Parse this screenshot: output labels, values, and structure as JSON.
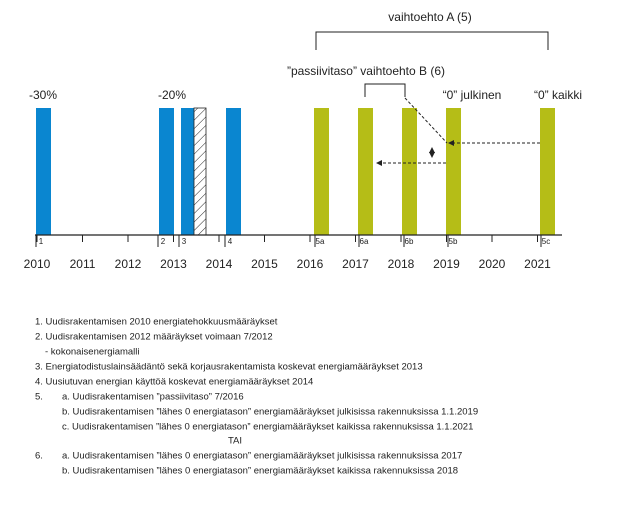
{
  "annotations": {
    "minus30": "-30%",
    "minus20": "-20%",
    "option_a": "vaihtoehto A (5)",
    "option_b": "”passiivitaso” vaihtoehto B (6)",
    "zero_public": "“0” julkinen",
    "zero_all": "“0” kaikki"
  },
  "years": [
    "2010",
    "2011",
    "2012",
    "2013",
    "2014",
    "2015",
    "2016",
    "2017",
    "2018",
    "2019",
    "2020",
    "2021"
  ],
  "bar_labels": [
    "1",
    "2",
    "3",
    "4",
    "5a",
    "6a",
    "6b",
    "5b",
    "5c"
  ],
  "notes": [
    "1. Uudisrakentamisen 2010 energiatehokkuusmääräykset",
    "2. Uudisrakentamisen 2012 määräykset voimaan 7/2012",
    "- kokonaisenergiamalli",
    "3. Energiatodistuslainsäädäntö sekä korjausrakentamista koskevat energiamääräykset 2013",
    "4. Uusiutuvan energian käyttöä koskevat energiamääräykset 2014"
  ],
  "option_a": {
    "number": "5.",
    "items": [
      "a. Uudisrakentamisen ”passiivitaso” 7/2016",
      "b. Uudisrakentamisen ”lähes 0 energiatason” energiamääräykset julkisissa rakennuksissa 1.1.2019",
      "c. Uudisrakentamisen ”lähes 0 energiatason” energiamääräykset kaikissa rakennuksissa 1.1.2021"
    ]
  },
  "separator": "TAI",
  "option_b": {
    "number": "6.",
    "items": [
      "a. Uudisrakentamisen ”lähes 0 energiatason” energiamääräykset julkisissa rakennuksissa 2017",
      "b. Uudisrakentamisen ”lähes 0 energiatason” energiamääräykset kaikissa rakennuksissa 2018"
    ]
  }
}
